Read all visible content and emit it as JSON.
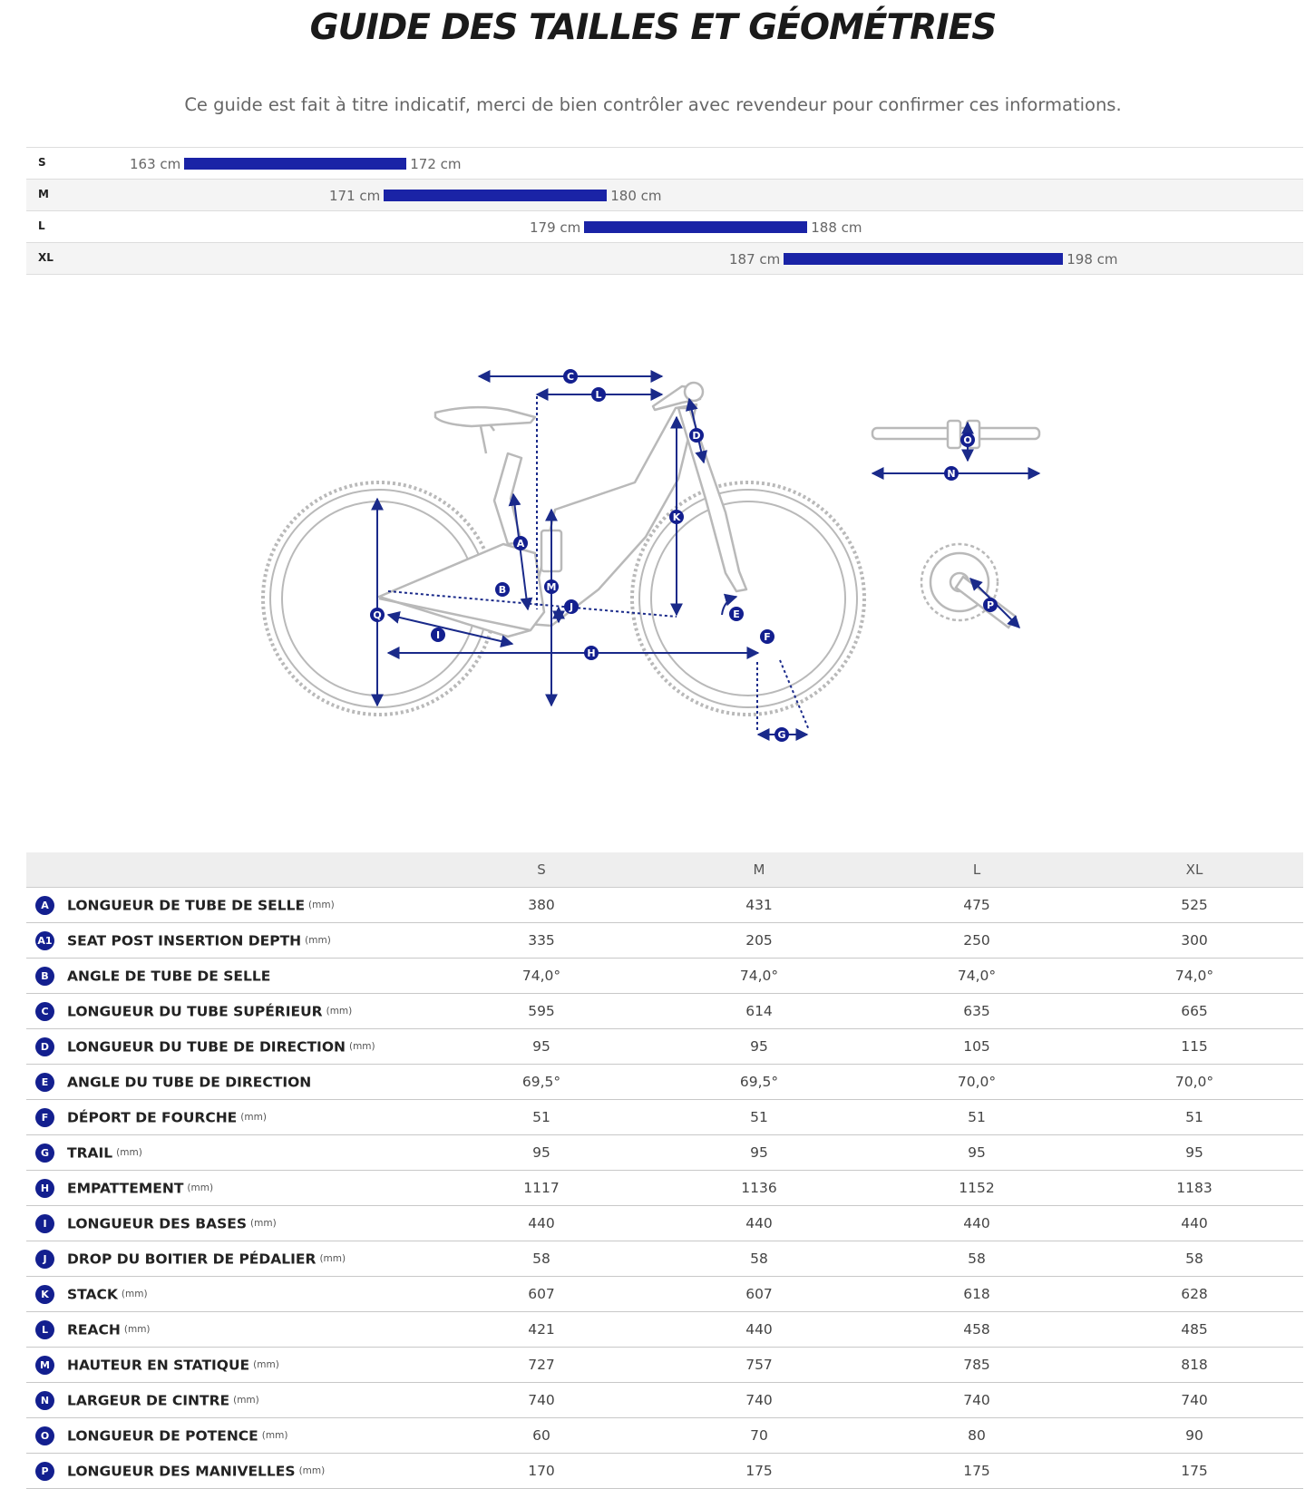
{
  "title": "GUIDE DES TAILLES ET GÉOMÉTRIES",
  "subtitle": "Ce guide est fait à titre indicatif, merci de bien contrôler avec revendeur pour confirmer ces informations.",
  "size_ranges": [
    {
      "size": "S",
      "min": "163 cm",
      "max": "172 cm",
      "min_cm": 163,
      "max_cm": 172
    },
    {
      "size": "M",
      "min": "171 cm",
      "max": "180 cm",
      "min_cm": 171,
      "max_cm": 180
    },
    {
      "size": "L",
      "min": "179 cm",
      "max": "188 cm",
      "min_cm": 179,
      "max_cm": 188
    },
    {
      "size": "XL",
      "min": "187 cm",
      "max": "198 cm",
      "min_cm": 187,
      "max_cm": 198
    }
  ],
  "diagram_labels": [
    "C",
    "L",
    "D",
    "K",
    "A",
    "M",
    "B",
    "J",
    "Q",
    "I",
    "H",
    "E",
    "F",
    "G",
    "O",
    "N",
    "P"
  ],
  "colors": {
    "accent": "#1a23a6",
    "badge": "#131f8f",
    "frame": "#b9b9b9"
  },
  "table": {
    "columns": [
      "S",
      "M",
      "L",
      "XL"
    ],
    "rows": [
      {
        "code": "A",
        "label": "LONGUEUR DE TUBE DE SELLE",
        "unit": "(mm)",
        "values": [
          "380",
          "431",
          "475",
          "525"
        ]
      },
      {
        "code": "A1",
        "label": "SEAT POST INSERTION DEPTH",
        "unit": "(mm)",
        "values": [
          "335",
          "205",
          "250",
          "300"
        ]
      },
      {
        "code": "B",
        "label": "ANGLE DE TUBE DE SELLE",
        "unit": "",
        "values": [
          "74,0°",
          "74,0°",
          "74,0°",
          "74,0°"
        ]
      },
      {
        "code": "C",
        "label": "LONGUEUR DU TUBE SUPÉRIEUR",
        "unit": "(mm)",
        "values": [
          "595",
          "614",
          "635",
          "665"
        ]
      },
      {
        "code": "D",
        "label": "LONGUEUR DU TUBE DE DIRECTION",
        "unit": "(mm)",
        "values": [
          "95",
          "95",
          "105",
          "115"
        ]
      },
      {
        "code": "E",
        "label": "ANGLE DU TUBE DE DIRECTION",
        "unit": "",
        "values": [
          "69,5°",
          "69,5°",
          "70,0°",
          "70,0°"
        ]
      },
      {
        "code": "F",
        "label": "DÉPORT DE FOURCHE",
        "unit": "(mm)",
        "values": [
          "51",
          "51",
          "51",
          "51"
        ]
      },
      {
        "code": "G",
        "label": "TRAIL",
        "unit": "(mm)",
        "values": [
          "95",
          "95",
          "95",
          "95"
        ]
      },
      {
        "code": "H",
        "label": "EMPATTEMENT",
        "unit": "(mm)",
        "values": [
          "1117",
          "1136",
          "1152",
          "1183"
        ]
      },
      {
        "code": "I",
        "label": "LONGUEUR DES BASES",
        "unit": "(mm)",
        "values": [
          "440",
          "440",
          "440",
          "440"
        ]
      },
      {
        "code": "J",
        "label": "DROP DU BOITIER DE PÉDALIER",
        "unit": "(mm)",
        "values": [
          "58",
          "58",
          "58",
          "58"
        ]
      },
      {
        "code": "K",
        "label": "STACK",
        "unit": "(mm)",
        "values": [
          "607",
          "607",
          "618",
          "628"
        ]
      },
      {
        "code": "L",
        "label": "REACH",
        "unit": "(mm)",
        "values": [
          "421",
          "440",
          "458",
          "485"
        ]
      },
      {
        "code": "M",
        "label": "HAUTEUR EN STATIQUE",
        "unit": "(mm)",
        "values": [
          "727",
          "757",
          "785",
          "818"
        ]
      },
      {
        "code": "N",
        "label": "LARGEUR DE CINTRE",
        "unit": "(mm)",
        "values": [
          "740",
          "740",
          "740",
          "740"
        ]
      },
      {
        "code": "O",
        "label": "LONGUEUR DE POTENCE",
        "unit": "(mm)",
        "values": [
          "60",
          "70",
          "80",
          "90"
        ]
      },
      {
        "code": "P",
        "label": "LONGUEUR DES MANIVELLES",
        "unit": "(mm)",
        "values": [
          "170",
          "175",
          "175",
          "175"
        ]
      }
    ]
  }
}
